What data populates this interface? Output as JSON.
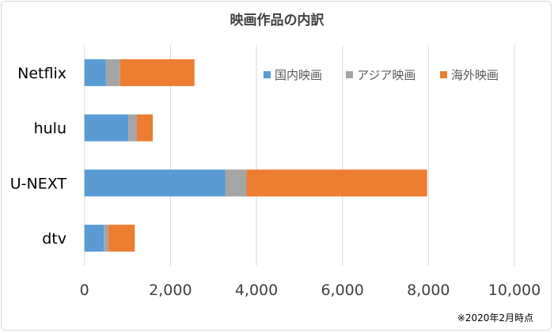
{
  "chart_data": {
    "type": "bar",
    "orientation": "horizontal",
    "stacked": true,
    "title": "映画作品の内訳",
    "categories": [
      "Netflix",
      "hulu",
      "U-NEXT",
      "dtv"
    ],
    "series": [
      {
        "name": "国内映画",
        "color": "#5b9bd5",
        "values": [
          500,
          1020,
          3280,
          450
        ]
      },
      {
        "name": "アジア映画",
        "color": "#a5a5a5",
        "values": [
          330,
          200,
          490,
          110
        ]
      },
      {
        "name": "海外映画",
        "color": "#ed7d31",
        "values": [
          1730,
          370,
          4200,
          610
        ]
      }
    ],
    "xlim": [
      0,
      10000
    ],
    "xticks": [
      "0",
      "2,000",
      "4,000",
      "6,000",
      "8,000",
      "10,000"
    ],
    "grid": true,
    "legend_position": "top-right",
    "footnote": "※2020年2月時点"
  }
}
